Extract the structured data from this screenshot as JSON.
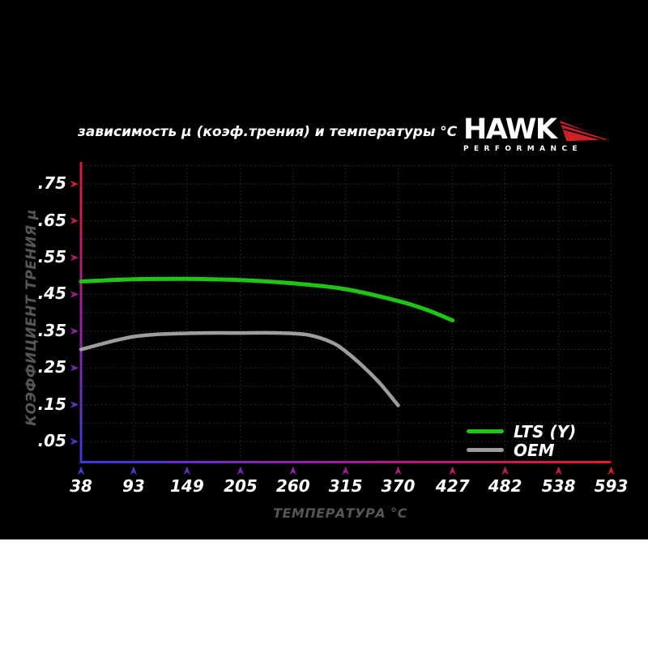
{
  "page": {
    "canvas_bg": "#000000",
    "page_bg": "#ffffff"
  },
  "header": {
    "logo": {
      "brand": "HAWK",
      "subtitle": "PERFORMANCE",
      "wing_color": "#cd2027",
      "text_color": "#ffffff"
    }
  },
  "chart_data": {
    "type": "line",
    "title": "зависимость μ (коэф.трения) и температуры °C",
    "xlabel": "ТЕМПЕРАТУРА °C",
    "ylabel": "КОЭФФИЦИЕНТ ТРЕНИЯ μ",
    "xlim": [
      38,
      593
    ],
    "ylim": [
      0,
      0.8
    ],
    "x_ticks": [
      38,
      93,
      149,
      205,
      260,
      315,
      370,
      427,
      482,
      538,
      593
    ],
    "y_ticks": [
      {
        "value": 0.75,
        "label": ".75"
      },
      {
        "value": 0.65,
        "label": ".65"
      },
      {
        "value": 0.55,
        "label": ".55"
      },
      {
        "value": 0.45,
        "label": ".45"
      },
      {
        "value": 0.35,
        "label": ".35"
      },
      {
        "value": 0.25,
        "label": ".25"
      },
      {
        "value": 0.15,
        "label": ".15"
      },
      {
        "value": 0.05,
        "label": ".05"
      }
    ],
    "grid": "dotted",
    "grid_color": "#2e2e2e",
    "label_color": "#565656",
    "tick_text_color": "#ffffff",
    "legend_position": "lower-right",
    "axis_gradient": {
      "cold": "#3c3cd2",
      "mid": "#a01e9c",
      "hot": "#d81e28"
    },
    "series": [
      {
        "name": "LTS (Y)",
        "color": "#1fc513",
        "x": [
          38,
          93,
          149,
          205,
          260,
          315,
          370,
          400,
          427
        ],
        "y": [
          0.485,
          0.491,
          0.492,
          0.489,
          0.48,
          0.464,
          0.432,
          0.408,
          0.379
        ]
      },
      {
        "name": "OEM",
        "color": "#9d9d9d",
        "x": [
          38,
          93,
          149,
          205,
          245,
          275,
          300,
          315,
          335,
          352,
          370
        ],
        "y": [
          0.3,
          0.335,
          0.344,
          0.345,
          0.345,
          0.34,
          0.32,
          0.295,
          0.25,
          0.205,
          0.148
        ]
      }
    ]
  },
  "legend": {
    "items": [
      {
        "label": "LTS (Y)",
        "color": "#1fc513"
      },
      {
        "label": "OEM",
        "color": "#9d9d9d"
      }
    ]
  }
}
